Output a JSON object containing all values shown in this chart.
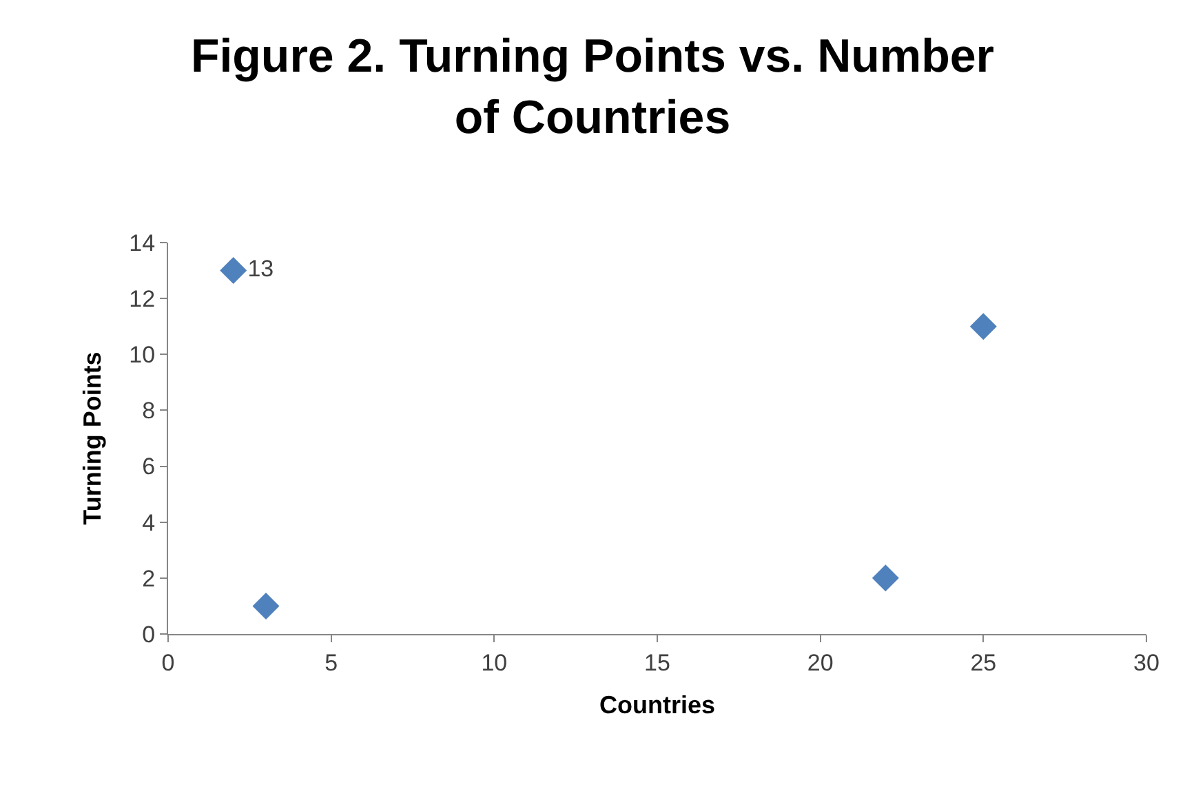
{
  "chart_data": {
    "type": "scatter",
    "title": "Figure 2. Turning Points vs. Number of Countries",
    "xlabel": "Countries",
    "ylabel": "Turning Points",
    "x": [
      2,
      3,
      22,
      25
    ],
    "series": [
      {
        "color": "#4f81bd",
        "values": [
          13,
          1,
          2,
          11
        ],
        "value_labels": [
          "13",
          null,
          null,
          null
        ]
      }
    ],
    "xlim": [
      0,
      30
    ],
    "xticks": [
      0,
      5,
      10,
      15,
      20,
      25,
      30
    ],
    "ylim": [
      0,
      14
    ],
    "yticks": [
      0,
      2,
      4,
      6,
      8,
      10,
      12,
      14
    ],
    "marker": "diamond",
    "grid": false
  }
}
